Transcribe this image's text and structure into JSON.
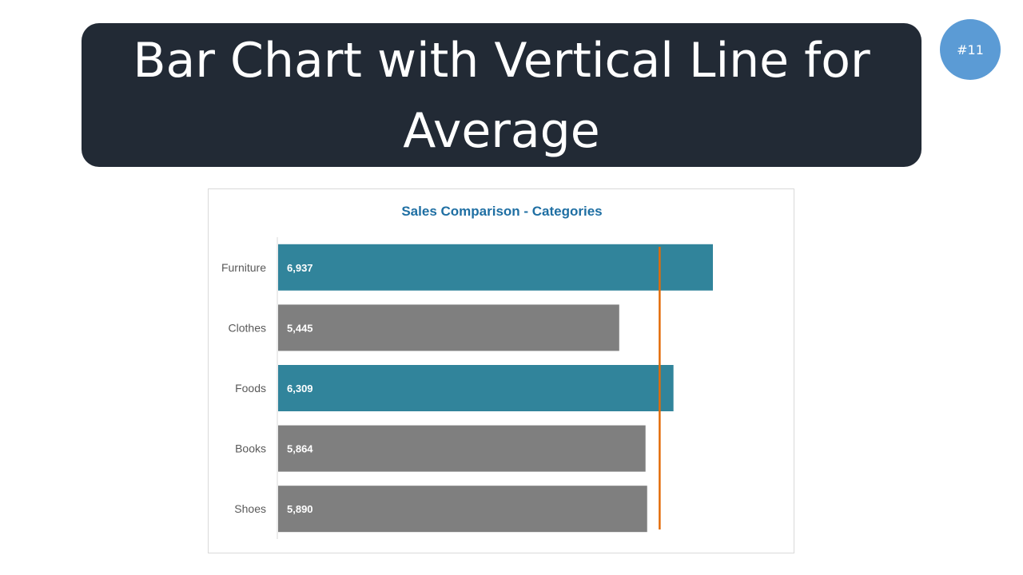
{
  "banner": {
    "title": "Bar Chart with Vertical Line for Average"
  },
  "badge": {
    "label": "#11"
  },
  "colors": {
    "banner_bg": "#222a35",
    "badge_bg": "#5b9bd5",
    "highlight_bar": "#31849b",
    "regular_bar": "#7f7f7f",
    "average_line": "#e36c09",
    "chart_title": "#1f6fa3"
  },
  "chart_data": {
    "type": "bar",
    "orientation": "horizontal",
    "title": "Sales Comparison  - Categories",
    "xlabel": "",
    "ylabel": "",
    "categories": [
      "Furniture",
      "Clothes",
      "Foods",
      "Books",
      "Shoes"
    ],
    "values": [
      6937,
      5445,
      6309,
      5864,
      5890
    ],
    "value_labels": [
      "6,937",
      "5,445",
      "6,309",
      "5,864",
      "5,890"
    ],
    "highlighted": [
      true,
      false,
      true,
      false,
      false
    ],
    "average": 6089,
    "xlim": [
      0,
      8000
    ],
    "grid": false,
    "legend": "none"
  }
}
